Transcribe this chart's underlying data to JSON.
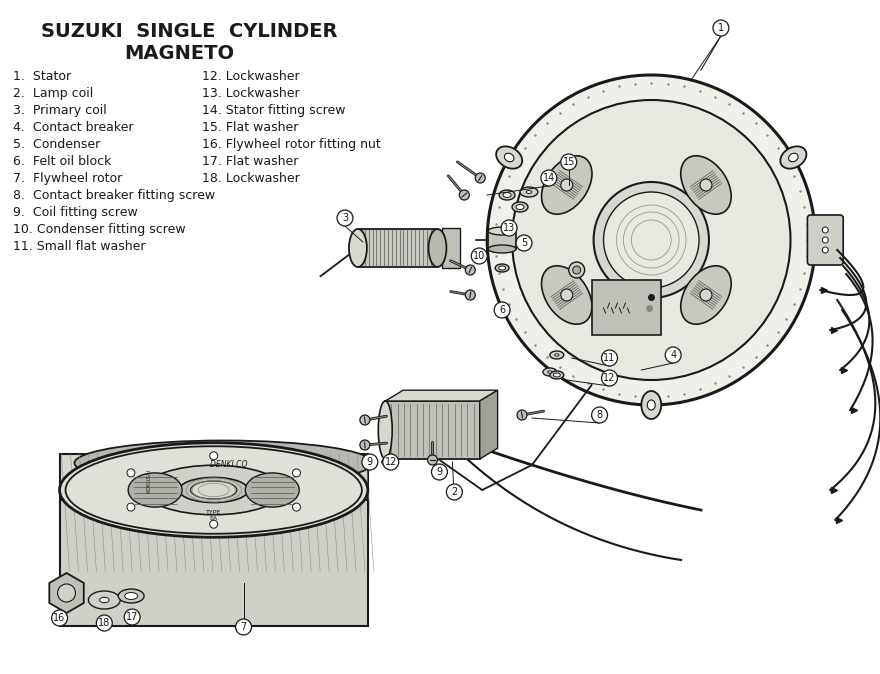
{
  "title_line1": "SUZUKI  SINGLE  CYLINDER",
  "title_line2": "MAGNETO",
  "bg_color": "#ffffff",
  "text_color": "#1a1a1a",
  "parts_col1": [
    "1.  Stator",
    "2.  Lamp coil",
    "3.  Primary coil",
    "4.  Contact breaker",
    "5.  Condenser",
    "6.  Felt oil block",
    "7.  Flywheel rotor",
    "8.  Contact breaker fitting screw",
    "9.  Coil fitting screw",
    "10. Condenser fitting screw",
    "11. Small flat washer"
  ],
  "parts_col2": [
    "12. Lockwasher",
    "13. Lockwasher",
    "14. Stator fitting screw",
    "15. Flat washer",
    "16. Flywheel rotor fitting nut",
    "17. Flat washer",
    "18. Lockwasher"
  ]
}
